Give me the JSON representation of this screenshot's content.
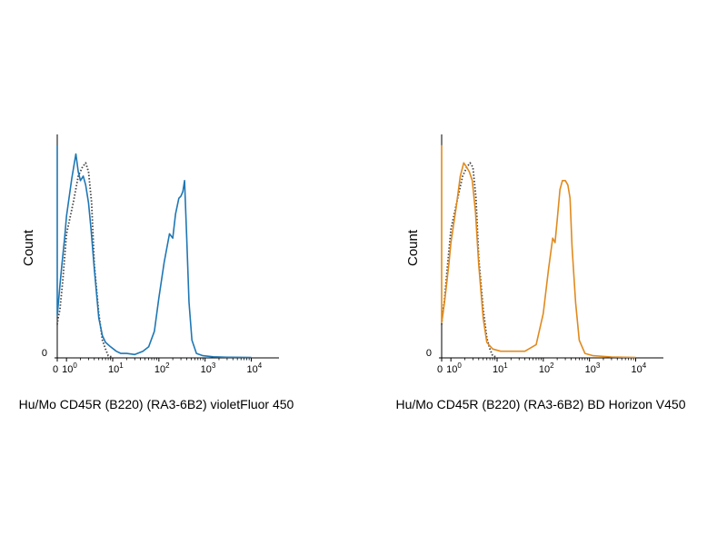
{
  "chart_data": [
    {
      "type": "line",
      "title": "",
      "xlabel": "Hu/Mo CD45R (B220) (RA3-6B2) violetFluor 450",
      "ylabel": "Count",
      "x_scale": "log",
      "xlim": [
        0,
        10000
      ],
      "ylim": [
        0,
        100
      ],
      "x_ticks": [
        {
          "base": "0",
          "exp": ""
        },
        {
          "base": "10",
          "exp": "0"
        },
        {
          "base": "10",
          "exp": "1"
        },
        {
          "base": "10",
          "exp": "2"
        },
        {
          "base": "10",
          "exp": "3"
        },
        {
          "base": "10",
          "exp": "4"
        }
      ],
      "y_ticks": [
        "0"
      ],
      "grid": false,
      "series": [
        {
          "color": "#1f77b4",
          "style": "solid",
          "x": [
            0,
            0,
            0.15,
            0.3,
            0.5,
            0.8,
            1.0,
            1.3,
            1.6,
            1.8,
            2.0,
            2.3,
            2.6,
            3.0,
            3.4,
            4.0,
            5.0,
            6.0,
            7.0,
            9.0,
            12,
            15,
            20,
            30,
            45,
            60,
            80,
            100,
            130,
            170,
            200,
            230,
            270,
            300,
            330,
            360,
            400,
            450,
            520,
            650,
            900,
            1500,
            3000,
            10000
          ],
          "y": [
            96,
            19,
            26,
            33,
            42,
            54,
            64,
            81,
            92,
            84,
            80,
            82,
            78,
            70,
            58,
            40,
            18,
            10,
            7,
            5,
            3,
            2,
            2,
            1.5,
            3,
            5,
            12,
            27,
            43,
            56,
            54,
            65,
            72,
            73,
            75,
            80,
            55,
            25,
            8,
            2,
            1,
            0.5,
            0.3,
            0.2
          ]
        },
        {
          "color": "#444444",
          "style": "dotted",
          "x": [
            0,
            0.1,
            0.3,
            0.6,
            1.0,
            1.4,
            1.8,
            2.2,
            2.6,
            3.0,
            3.5,
            4.0,
            5.0,
            6.0,
            7.0,
            8.0,
            10
          ],
          "y": [
            15,
            18,
            22,
            35,
            56,
            70,
            82,
            86,
            88,
            84,
            70,
            42,
            20,
            8,
            4,
            1,
            0.3
          ]
        }
      ]
    },
    {
      "type": "line",
      "title": "",
      "xlabel": "Hu/Mo CD45R (B220) (RA3-6B2) BD Horizon V450",
      "ylabel": "Count",
      "x_scale": "log",
      "xlim": [
        0,
        10000
      ],
      "ylim": [
        0,
        100
      ],
      "x_ticks": [
        {
          "base": "0",
          "exp": ""
        },
        {
          "base": "10",
          "exp": "0"
        },
        {
          "base": "10",
          "exp": "1"
        },
        {
          "base": "10",
          "exp": "2"
        },
        {
          "base": "10",
          "exp": "3"
        },
        {
          "base": "10",
          "exp": "4"
        }
      ],
      "y_ticks": [
        "0"
      ],
      "grid": false,
      "series": [
        {
          "color": "#e08a1e",
          "style": "solid",
          "x": [
            0,
            0,
            0.15,
            0.3,
            0.5,
            0.8,
            1.0,
            1.3,
            1.6,
            1.9,
            2.2,
            2.5,
            2.9,
            3.4,
            4.0,
            5.0,
            6.0,
            8.0,
            12,
            20,
            40,
            70,
            100,
            130,
            160,
            180,
            200,
            230,
            260,
            300,
            340,
            380,
            420,
            500,
            600,
            800,
            1200,
            3000,
            10000
          ],
          "y": [
            96,
            16,
            20,
            25,
            32,
            43,
            52,
            68,
            82,
            88,
            86,
            84,
            80,
            66,
            42,
            18,
            7,
            4,
            3,
            3,
            3,
            6,
            20,
            40,
            54,
            52,
            62,
            76,
            80,
            80,
            78,
            72,
            50,
            25,
            8,
            2,
            1,
            0.4,
            0.2
          ]
        },
        {
          "color": "#444444",
          "style": "dotted",
          "x": [
            0,
            0.1,
            0.3,
            0.6,
            1.0,
            1.4,
            1.8,
            2.2,
            2.6,
            3.0,
            3.5,
            4.0,
            5.0,
            6.0,
            7.0,
            8.0,
            10
          ],
          "y": [
            15,
            20,
            26,
            40,
            58,
            72,
            82,
            86,
            88,
            86,
            72,
            45,
            22,
            9,
            4,
            1,
            0.3
          ]
        }
      ]
    }
  ]
}
